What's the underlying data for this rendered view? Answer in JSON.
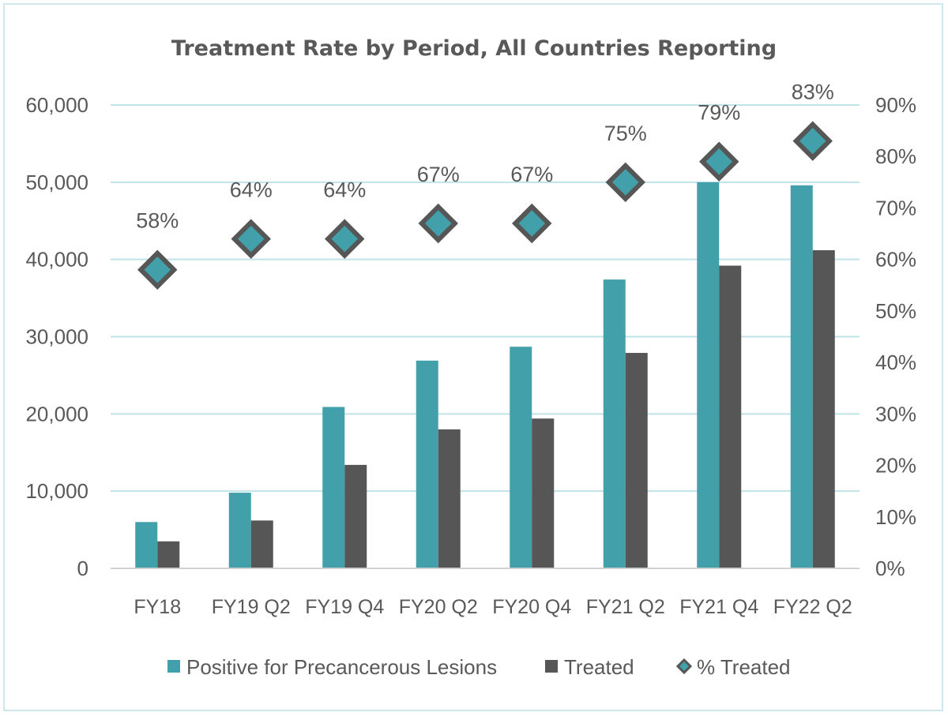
{
  "chart_data": {
    "type": "bar",
    "title": "Treatment Rate by Period, All Countries Reporting",
    "categories": [
      "FY18",
      "FY19 Q2",
      "FY19 Q4",
      "FY20 Q2",
      "FY20 Q4",
      "FY21 Q2",
      "FY21 Q4",
      "FY22 Q2"
    ],
    "series": [
      {
        "name": "Positive for Precancerous Lesions",
        "type": "bar",
        "axis": "left",
        "color": "#42a0aa",
        "values": [
          6000,
          9800,
          20900,
          26900,
          28700,
          37400,
          50000,
          49600
        ]
      },
      {
        "name": "Treated",
        "type": "bar",
        "axis": "left",
        "color": "#565656",
        "values": [
          3500,
          6200,
          13400,
          18000,
          19400,
          27900,
          39200,
          41200
        ]
      },
      {
        "name": "% Treated",
        "type": "marker",
        "marker": "diamond",
        "axis": "right",
        "color": "#42a0aa",
        "values": [
          58,
          64,
          64,
          67,
          67,
          75,
          79,
          83
        ],
        "labels": [
          "58%",
          "64%",
          "64%",
          "67%",
          "67%",
          "75%",
          "79%",
          "83%"
        ]
      }
    ],
    "y_left": {
      "min": 0,
      "max": 60000,
      "ticks": [
        0,
        10000,
        20000,
        30000,
        40000,
        50000,
        60000
      ],
      "tick_labels": [
        "0",
        "10,000",
        "20,000",
        "30,000",
        "40,000",
        "50,000",
        "60,000"
      ]
    },
    "y_right": {
      "min": 0,
      "max": 90,
      "ticks": [
        0,
        10,
        20,
        30,
        40,
        50,
        60,
        70,
        80,
        90
      ],
      "tick_labels": [
        "0%",
        "10%",
        "20%",
        "30%",
        "40%",
        "50%",
        "60%",
        "70%",
        "80%",
        "90%"
      ]
    },
    "grid": true,
    "gridline_color": "#bfe3e8",
    "legend_position": "bottom"
  }
}
